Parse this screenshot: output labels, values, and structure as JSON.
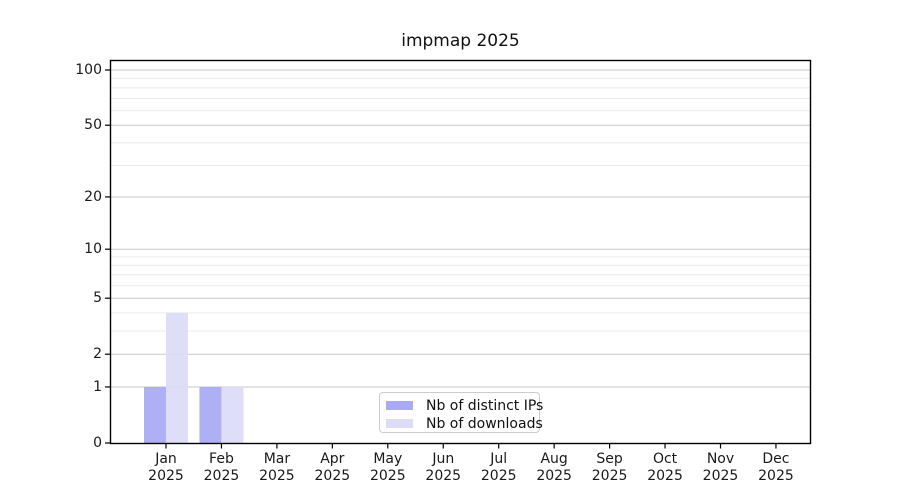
{
  "chart_data": {
    "type": "bar",
    "title": "impmap 2025",
    "x_year": "2025",
    "categories": [
      "Jan",
      "Feb",
      "Mar",
      "Apr",
      "May",
      "Jun",
      "Jul",
      "Aug",
      "Sep",
      "Oct",
      "Nov",
      "Dec"
    ],
    "series": [
      {
        "name": "Nb of distinct IPs",
        "color": "#a9a9f5",
        "values": [
          1,
          1,
          0,
          0,
          0,
          0,
          0,
          0,
          0,
          0,
          0,
          0
        ]
      },
      {
        "name": "Nb of downloads",
        "color": "#dcdcf7",
        "values": [
          4,
          1,
          0,
          0,
          0,
          0,
          0,
          0,
          0,
          0,
          0,
          0
        ]
      }
    ],
    "y_scale": "log(1+x)",
    "y_ticks": [
      0,
      1,
      2,
      5,
      10,
      20,
      50,
      100
    ],
    "y_minor_ticks": [
      3,
      4,
      6,
      7,
      8,
      9,
      30,
      40,
      60,
      70,
      80,
      90
    ],
    "ylim": [
      0,
      112
    ],
    "grid": "horizontal",
    "legend_position": "lower center",
    "colors": {
      "major_grid": "#c9c9c9",
      "minor_grid": "#ebebeb",
      "spine": "#000000",
      "text": "#1a1a1a"
    }
  }
}
